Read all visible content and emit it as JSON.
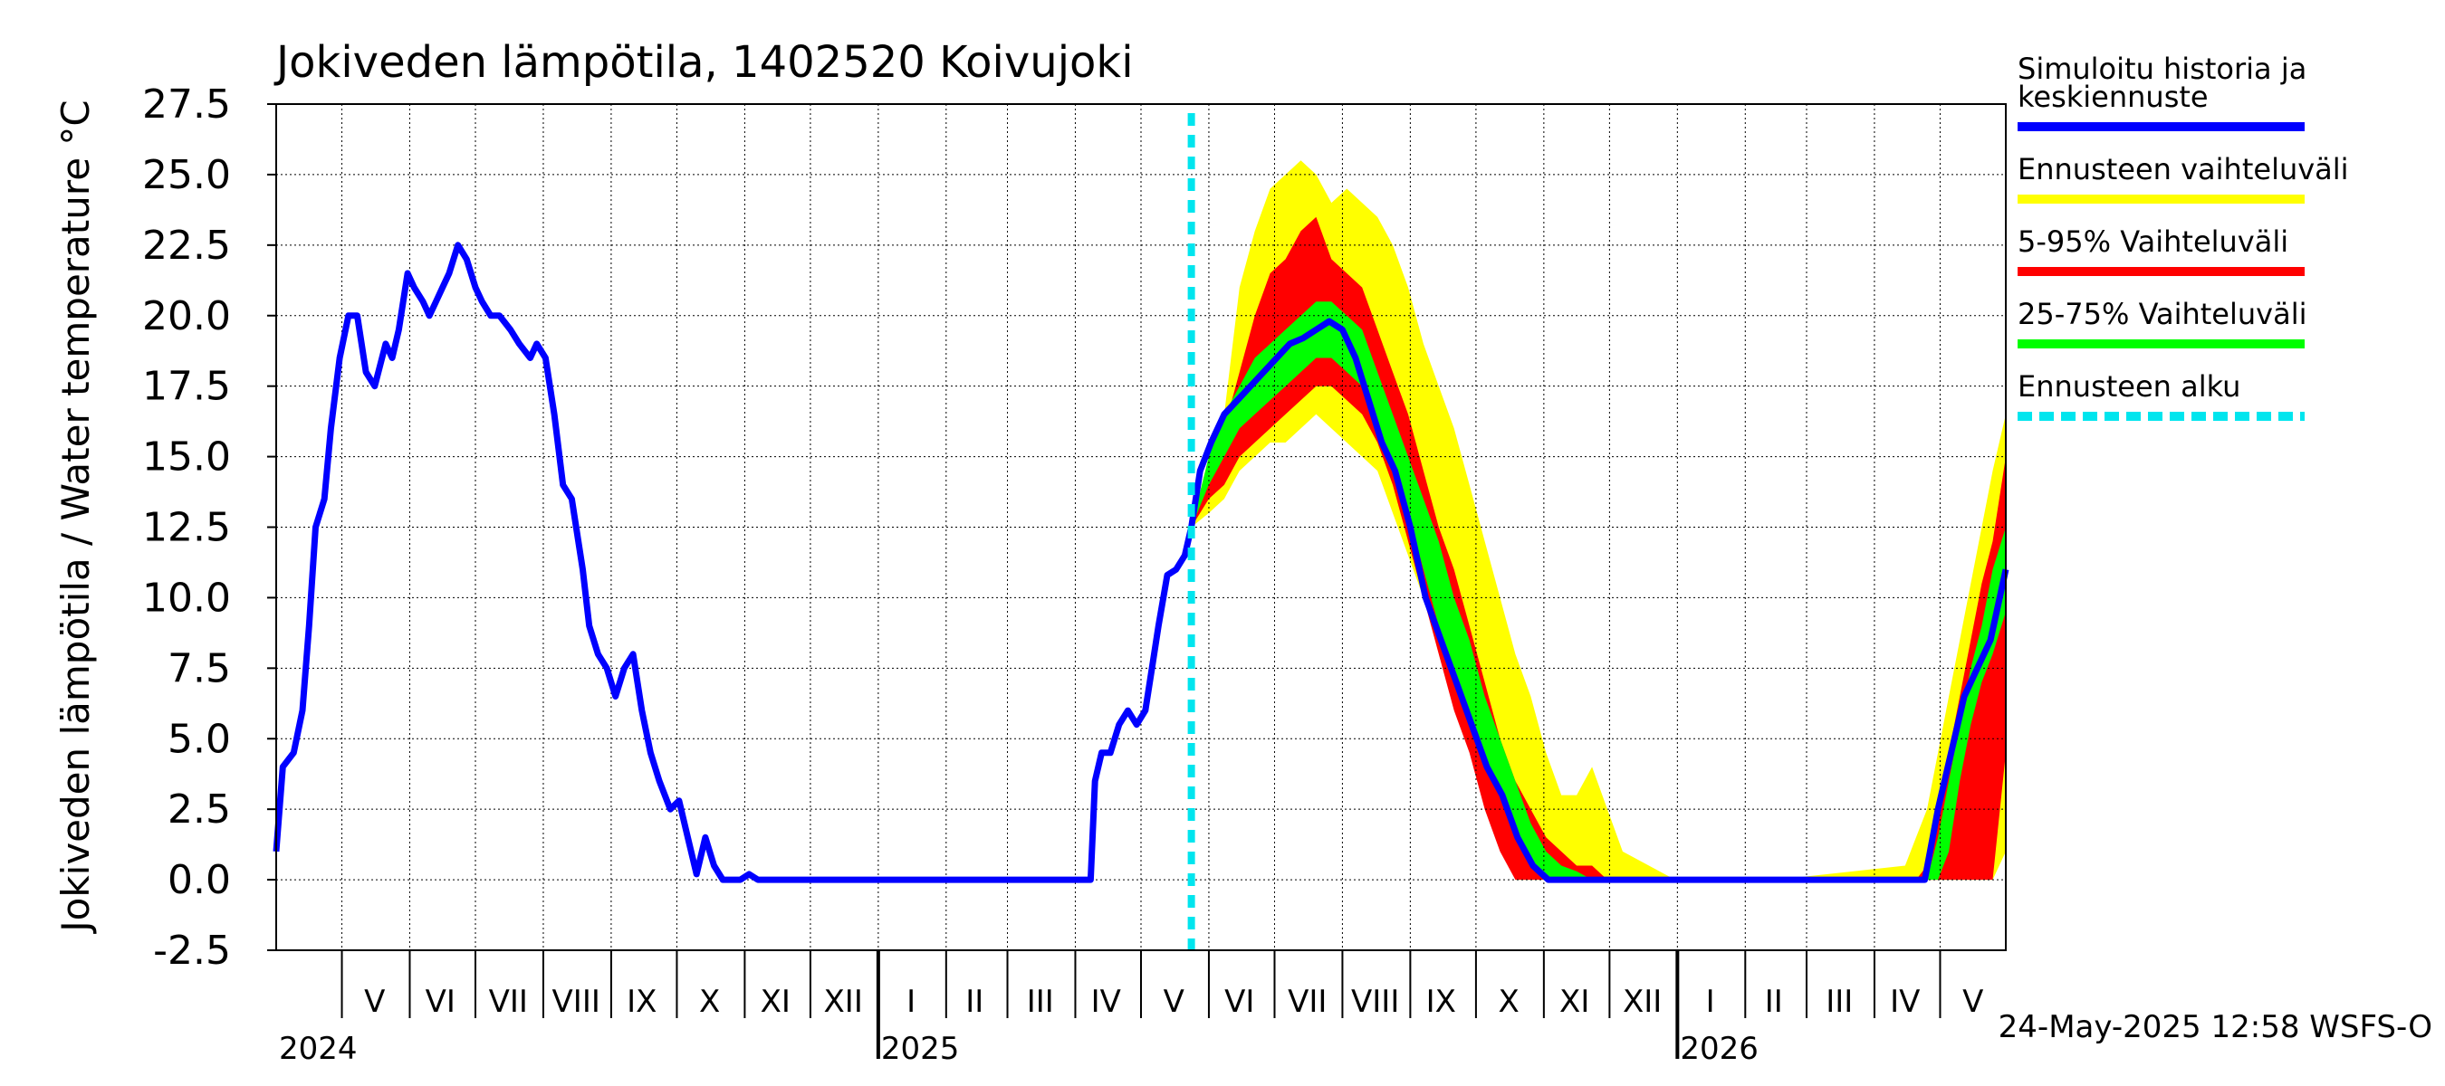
{
  "chart_data": {
    "type": "line",
    "title": "Jokiveden lämpötila, 1402520 Koivujoki",
    "ylabel": "Jokiveden lämpötila / Water temperature   °C",
    "ylim": [
      -2.5,
      27.5
    ],
    "yticks": [
      "27.5",
      "25.0",
      "22.5",
      "20.0",
      "17.5",
      "15.0",
      "12.5",
      "10.0",
      "7.5",
      "5.0",
      "2.5",
      "0.0",
      "-2.5"
    ],
    "xlim": [
      "2024-04-01",
      "2026-05-31"
    ],
    "month_labels": [
      {
        "label": "V",
        "mid": "2024-05-16"
      },
      {
        "label": "VI",
        "mid": "2024-06-15"
      },
      {
        "label": "VII",
        "mid": "2024-07-16"
      },
      {
        "label": "VIII",
        "mid": "2024-08-16"
      },
      {
        "label": "IX",
        "mid": "2024-09-15"
      },
      {
        "label": "X",
        "mid": "2024-10-16"
      },
      {
        "label": "XI",
        "mid": "2024-11-15"
      },
      {
        "label": "XII",
        "mid": "2024-12-16"
      },
      {
        "label": "I",
        "mid": "2025-01-16"
      },
      {
        "label": "II",
        "mid": "2025-02-14"
      },
      {
        "label": "III",
        "mid": "2025-03-16"
      },
      {
        "label": "IV",
        "mid": "2025-04-15"
      },
      {
        "label": "V",
        "mid": "2025-05-16"
      },
      {
        "label": "VI",
        "mid": "2025-06-15"
      },
      {
        "label": "VII",
        "mid": "2025-07-16"
      },
      {
        "label": "VIII",
        "mid": "2025-08-16"
      },
      {
        "label": "IX",
        "mid": "2025-09-15"
      },
      {
        "label": "X",
        "mid": "2025-10-16"
      },
      {
        "label": "XI",
        "mid": "2025-11-15"
      },
      {
        "label": "XII",
        "mid": "2025-12-16"
      },
      {
        "label": "I",
        "mid": "2026-01-16"
      },
      {
        "label": "II",
        "mid": "2026-02-14"
      },
      {
        "label": "III",
        "mid": "2026-03-16"
      },
      {
        "label": "IV",
        "mid": "2026-04-15"
      },
      {
        "label": "V",
        "mid": "2026-05-16"
      }
    ],
    "month_starts": [
      "2024-05-01",
      "2024-06-01",
      "2024-07-01",
      "2024-08-01",
      "2024-09-01",
      "2024-10-01",
      "2024-11-01",
      "2024-12-01",
      "2025-01-01",
      "2025-02-01",
      "2025-03-01",
      "2025-04-01",
      "2025-05-01",
      "2025-06-01",
      "2025-07-01",
      "2025-08-01",
      "2025-09-01",
      "2025-10-01",
      "2025-11-01",
      "2025-12-01",
      "2026-01-01",
      "2026-02-01",
      "2026-03-01",
      "2026-04-01",
      "2026-05-01"
    ],
    "year_labels": [
      {
        "label": "2024",
        "date": "2024-04-01"
      },
      {
        "label": "2025",
        "date": "2025-01-01"
      },
      {
        "label": "2026",
        "date": "2026-01-01"
      }
    ],
    "forecast_start": "2025-05-24",
    "grid": true,
    "legend_position": "right",
    "series": [
      {
        "name": "Simuloitu historia ja keskiennuste",
        "role": "line",
        "color": "#0000ff",
        "x": [
          "2024-04-01",
          "2024-04-04",
          "2024-04-09",
          "2024-04-13",
          "2024-04-16",
          "2024-04-19",
          "2024-04-23",
          "2024-04-26",
          "2024-04-30",
          "2024-05-04",
          "2024-05-08",
          "2024-05-12",
          "2024-05-16",
          "2024-05-21",
          "2024-05-24",
          "2024-05-27",
          "2024-05-31",
          "2024-06-03",
          "2024-06-07",
          "2024-06-10",
          "2024-06-13",
          "2024-06-16",
          "2024-06-19",
          "2024-06-23",
          "2024-06-27",
          "2024-07-01",
          "2024-07-04",
          "2024-07-08",
          "2024-07-12",
          "2024-07-17",
          "2024-07-21",
          "2024-07-26",
          "2024-07-29",
          "2024-08-02",
          "2024-08-06",
          "2024-08-10",
          "2024-08-14",
          "2024-08-19",
          "2024-08-22",
          "2024-08-26",
          "2024-08-30",
          "2024-09-03",
          "2024-09-07",
          "2024-09-11",
          "2024-09-15",
          "2024-09-19",
          "2024-09-23",
          "2024-09-28",
          "2024-10-02",
          "2024-10-06",
          "2024-10-10",
          "2024-10-14",
          "2024-10-18",
          "2024-10-22",
          "2024-10-26",
          "2024-10-30",
          "2024-11-03",
          "2024-11-07",
          "2024-11-11",
          "2024-11-15",
          "2024-11-19",
          "2024-11-23",
          "2024-11-27",
          "2024-12-01",
          "2024-12-04",
          "2024-12-08",
          "2024-12-11",
          "2024-12-14",
          "2024-12-18",
          "2024-12-22",
          "2024-12-26",
          "2024-12-30",
          "2025-01-15",
          "2025-02-15",
          "2025-03-15",
          "2025-04-08",
          "2025-04-10",
          "2025-04-13",
          "2025-04-17",
          "2025-04-21",
          "2025-04-25",
          "2025-04-29",
          "2025-05-03",
          "2025-05-06",
          "2025-05-09",
          "2025-05-13",
          "2025-05-17",
          "2025-05-21",
          "2025-05-24",
          "2025-05-28",
          "2025-06-02",
          "2025-06-08",
          "2025-06-14",
          "2025-06-20",
          "2025-06-26",
          "2025-07-02",
          "2025-07-08",
          "2025-07-14",
          "2025-07-20",
          "2025-07-26",
          "2025-08-01",
          "2025-08-07",
          "2025-08-13",
          "2025-08-19",
          "2025-08-25",
          "2025-09-01",
          "2025-09-08",
          "2025-09-15",
          "2025-09-22",
          "2025-09-29",
          "2025-10-06",
          "2025-10-13",
          "2025-10-20",
          "2025-10-27",
          "2025-11-03",
          "2025-11-10",
          "2025-11-17",
          "2025-12-01",
          "2025-12-31",
          "2026-02-15",
          "2026-04-20",
          "2026-04-24",
          "2026-04-30",
          "2026-05-06",
          "2026-05-12",
          "2026-05-18",
          "2026-05-24",
          "2026-05-31"
        ],
        "y": [
          1.0,
          4.0,
          4.5,
          6.0,
          9.0,
          12.5,
          13.5,
          16.0,
          18.5,
          20.0,
          20.0,
          18.0,
          17.5,
          19.0,
          18.5,
          19.5,
          21.5,
          21.0,
          20.5,
          20.0,
          20.5,
          21.0,
          21.5,
          22.5,
          22.0,
          21.0,
          20.5,
          20.0,
          20.0,
          19.5,
          19.0,
          18.5,
          19.0,
          18.5,
          16.5,
          14.0,
          13.5,
          11.0,
          9.0,
          8.0,
          7.5,
          6.5,
          7.5,
          8.0,
          6.0,
          4.5,
          3.5,
          2.5,
          2.8,
          1.5,
          0.2,
          1.5,
          0.5,
          0.0,
          0.0,
          0.0,
          0.2,
          0.0,
          0.0,
          0.0,
          0.0,
          0.0,
          0.0,
          0.0,
          0.0,
          0.0,
          0.0,
          0.0,
          0.0,
          0.0,
          0.0,
          0.0,
          0.0,
          0.0,
          0.0,
          0.0,
          3.5,
          4.5,
          4.5,
          5.5,
          6.0,
          5.5,
          6.0,
          7.5,
          9.0,
          10.8,
          11.0,
          11.5,
          12.5,
          14.5,
          15.5,
          16.5,
          17.0,
          17.5,
          18.0,
          18.5,
          19.0,
          19.2,
          19.5,
          19.8,
          19.5,
          18.5,
          17.0,
          15.5,
          14.5,
          12.5,
          10.0,
          8.5,
          7.0,
          5.5,
          4.0,
          3.0,
          1.5,
          0.5,
          0.0,
          0.0,
          0.0,
          0.0,
          0.0,
          0.0,
          0.0,
          0.0,
          2.5,
          4.5,
          6.5,
          7.5,
          8.5,
          11.0
        ]
      }
    ],
    "bands": [
      {
        "name": "Ennusteen vaihteluväli",
        "color": "#ffff00",
        "x": [
          "2025-05-24",
          "2025-06-01",
          "2025-06-08",
          "2025-06-15",
          "2025-06-22",
          "2025-06-29",
          "2025-07-06",
          "2025-07-13",
          "2025-07-20",
          "2025-07-27",
          "2025-08-03",
          "2025-08-10",
          "2025-08-17",
          "2025-08-24",
          "2025-08-31",
          "2025-09-07",
          "2025-09-14",
          "2025-09-21",
          "2025-09-28",
          "2025-10-05",
          "2025-10-12",
          "2025-10-19",
          "2025-10-26",
          "2025-11-02",
          "2025-11-09",
          "2025-11-16",
          "2025-11-23",
          "2025-11-30",
          "2025-12-07",
          "2025-12-31",
          "2026-02-15",
          "2026-04-15",
          "2026-04-20",
          "2026-04-25",
          "2026-04-30",
          "2026-05-05",
          "2026-05-10",
          "2026-05-15",
          "2026-05-20",
          "2026-05-25",
          "2026-05-31"
        ],
        "lower": [
          12.5,
          13.0,
          13.5,
          14.5,
          15.0,
          15.5,
          15.5,
          16.0,
          16.5,
          16.0,
          15.5,
          15.0,
          14.5,
          13.0,
          11.5,
          10.0,
          8.5,
          6.5,
          5.0,
          3.0,
          1.5,
          0.0,
          0.0,
          0.0,
          0.0,
          0.0,
          0.0,
          0.0,
          0.0,
          0.0,
          0.0,
          0.0,
          0.0,
          0.0,
          0.0,
          0.0,
          0.0,
          0.0,
          0.0,
          0.0,
          1.0
        ],
        "upper": [
          12.5,
          15.0,
          16.5,
          21.0,
          23.0,
          24.5,
          25.0,
          25.5,
          25.0,
          24.0,
          24.5,
          24.0,
          23.5,
          22.5,
          21.0,
          19.0,
          17.5,
          16.0,
          14.0,
          12.0,
          10.0,
          8.0,
          6.5,
          4.5,
          3.0,
          3.0,
          4.0,
          2.5,
          1.0,
          0.0,
          0.0,
          0.5,
          1.5,
          2.5,
          4.5,
          6.5,
          8.5,
          10.5,
          12.5,
          14.5,
          16.5
        ]
      },
      {
        "name": "5-95% Vaihteluväli",
        "color": "#ff0000",
        "x": [
          "2025-05-24",
          "2025-06-01",
          "2025-06-08",
          "2025-06-15",
          "2025-06-22",
          "2025-06-29",
          "2025-07-06",
          "2025-07-13",
          "2025-07-20",
          "2025-07-27",
          "2025-08-03",
          "2025-08-10",
          "2025-08-17",
          "2025-08-24",
          "2025-08-31",
          "2025-09-07",
          "2025-09-14",
          "2025-09-21",
          "2025-09-28",
          "2025-10-05",
          "2025-10-12",
          "2025-10-19",
          "2025-10-26",
          "2025-11-02",
          "2025-11-09",
          "2025-11-16",
          "2025-11-23",
          "2025-11-30",
          "2025-12-07",
          "2025-12-31",
          "2026-02-15",
          "2026-04-20",
          "2026-04-25",
          "2026-04-30",
          "2026-05-05",
          "2026-05-10",
          "2026-05-15",
          "2026-05-20",
          "2026-05-25",
          "2026-05-31"
        ],
        "lower": [
          12.5,
          13.5,
          14.0,
          15.0,
          15.5,
          16.0,
          16.5,
          17.0,
          17.5,
          17.5,
          17.0,
          16.5,
          15.5,
          14.0,
          12.0,
          10.0,
          8.0,
          6.0,
          4.5,
          2.5,
          1.0,
          0.0,
          0.0,
          0.0,
          0.0,
          0.0,
          0.0,
          0.0,
          0.0,
          0.0,
          0.0,
          0.0,
          0.0,
          0.0,
          0.0,
          0.0,
          0.0,
          0.0,
          0.0,
          4.5
        ],
        "upper": [
          12.5,
          14.5,
          16.0,
          18.0,
          20.0,
          21.5,
          22.0,
          23.0,
          23.5,
          22.0,
          21.5,
          21.0,
          19.5,
          18.0,
          16.5,
          14.5,
          12.5,
          11.0,
          9.0,
          7.0,
          5.0,
          3.5,
          2.5,
          1.5,
          1.0,
          0.5,
          0.5,
          0.0,
          0.0,
          0.0,
          0.0,
          0.0,
          0.5,
          2.0,
          4.5,
          6.5,
          8.5,
          10.5,
          12.0,
          15.0
        ]
      },
      {
        "name": "25-75% Vaihteluväli",
        "color": "#00ff00",
        "x": [
          "2025-05-24",
          "2025-06-01",
          "2025-06-08",
          "2025-06-15",
          "2025-06-22",
          "2025-06-29",
          "2025-07-06",
          "2025-07-13",
          "2025-07-20",
          "2025-07-27",
          "2025-08-03",
          "2025-08-10",
          "2025-08-17",
          "2025-08-24",
          "2025-08-31",
          "2025-09-07",
          "2025-09-14",
          "2025-09-21",
          "2025-09-28",
          "2025-10-05",
          "2025-10-12",
          "2025-10-19",
          "2025-10-26",
          "2025-11-02",
          "2025-11-09",
          "2025-11-16",
          "2025-11-23",
          "2025-11-30",
          "2025-12-31",
          "2026-02-15",
          "2026-04-25",
          "2026-04-30",
          "2026-05-05",
          "2026-05-10",
          "2026-05-15",
          "2026-05-20",
          "2026-05-25",
          "2026-05-31"
        ],
        "lower": [
          12.5,
          14.0,
          15.0,
          16.0,
          16.5,
          17.0,
          17.5,
          18.0,
          18.5,
          18.5,
          18.0,
          17.5,
          16.0,
          14.5,
          13.0,
          11.0,
          9.0,
          7.5,
          6.0,
          4.5,
          3.0,
          1.5,
          0.5,
          0.0,
          0.0,
          0.0,
          0.0,
          0.0,
          0.0,
          0.0,
          0.0,
          0.0,
          1.0,
          3.5,
          5.5,
          7.0,
          8.0,
          9.5
        ],
        "upper": [
          12.5,
          15.0,
          16.5,
          17.5,
          18.5,
          19.0,
          19.5,
          20.0,
          20.5,
          20.5,
          20.0,
          19.5,
          18.0,
          16.5,
          15.0,
          13.5,
          12.0,
          10.0,
          8.5,
          6.5,
          5.0,
          3.5,
          2.0,
          1.0,
          0.5,
          0.3,
          0.0,
          0.0,
          0.0,
          0.0,
          0.0,
          1.5,
          3.5,
          5.5,
          7.5,
          9.0,
          11.0,
          12.5
        ]
      }
    ],
    "legend": [
      {
        "label": "Simuloitu historia ja keskiennuste",
        "color": "#0000ff",
        "style": "solid"
      },
      {
        "label": "Ennusteen vaihteluväli",
        "color": "#ffff00",
        "style": "solid"
      },
      {
        "label": "5-95% Vaihteluväli",
        "color": "#ff0000",
        "style": "solid"
      },
      {
        "label": "25-75% Vaihteluväli",
        "color": "#00ff00",
        "style": "solid"
      },
      {
        "label": "Ennusteen alku",
        "color": "#00e5ee",
        "style": "dashed"
      }
    ],
    "footer": "24-May-2025 12:58 WSFS-O"
  }
}
